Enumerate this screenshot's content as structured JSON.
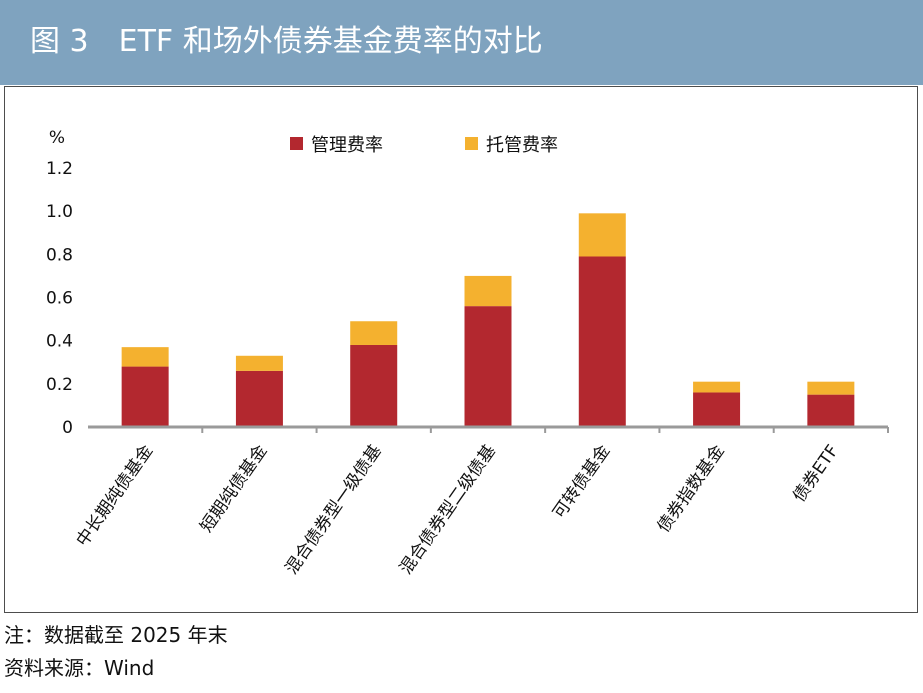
{
  "header": {
    "title": "图 3　ETF 和场外债券基金费率的对比"
  },
  "notes": {
    "note": "注：数据截至 2025 年末",
    "source": "资料来源：Wind"
  },
  "colors": {
    "header_bg": "#7fa3bf",
    "management": "#b3282f",
    "custody": "#f4b12f"
  },
  "chart_data": {
    "type": "bar",
    "stacked": true,
    "y_unit_label": "%",
    "ylim": [
      0,
      1.2
    ],
    "y_ticks": [
      "0",
      "0.2",
      "0.4",
      "0.6",
      "0.8",
      "1.0",
      "1.2"
    ],
    "grid": false,
    "legend_position": "top-center",
    "categories": [
      "中长期纯债基金",
      "短期纯债基金",
      "混合债券型一级债基",
      "混合债券型二级债基",
      "可转债基金",
      "债券指数基金",
      "债券ETF"
    ],
    "series": [
      {
        "name": "管理费率",
        "color": "#b3282f",
        "values": [
          0.28,
          0.26,
          0.38,
          0.56,
          0.79,
          0.16,
          0.15
        ]
      },
      {
        "name": "托管费率",
        "color": "#f4b12f",
        "values": [
          0.09,
          0.07,
          0.11,
          0.14,
          0.2,
          0.05,
          0.06
        ]
      }
    ]
  }
}
